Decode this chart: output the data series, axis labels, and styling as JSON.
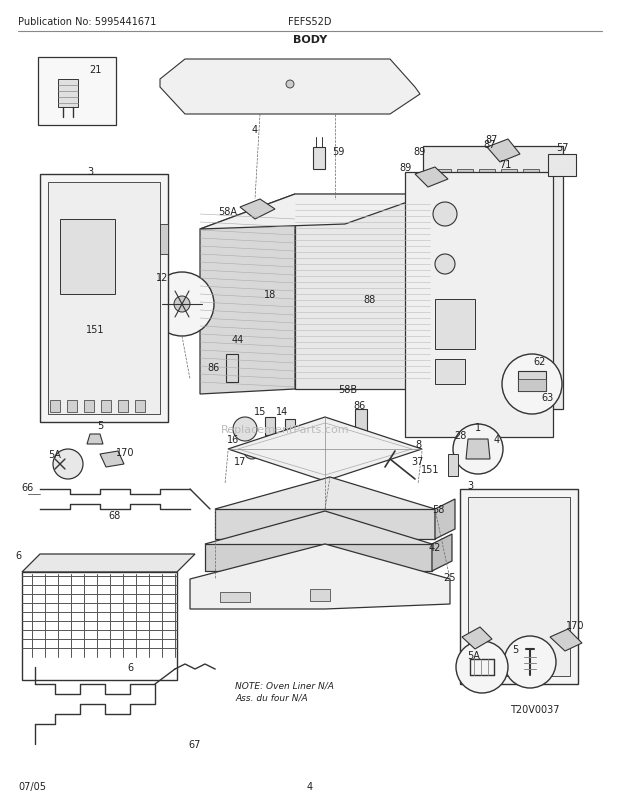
{
  "title": "BODY",
  "pub_no": "Publication No: 5995441671",
  "model": "FEFS52D",
  "date": "07/05",
  "page": "4",
  "diagram_id": "T20V0037",
  "note_line1": "NOTE: Oven Liner N/A",
  "note_line2": "Ass. du four N/A",
  "bg_color": "#ffffff",
  "lc": "#333333",
  "tc": "#222222",
  "wm_color": "#bbbbbb",
  "wm_text": "ReplacementParts.com"
}
